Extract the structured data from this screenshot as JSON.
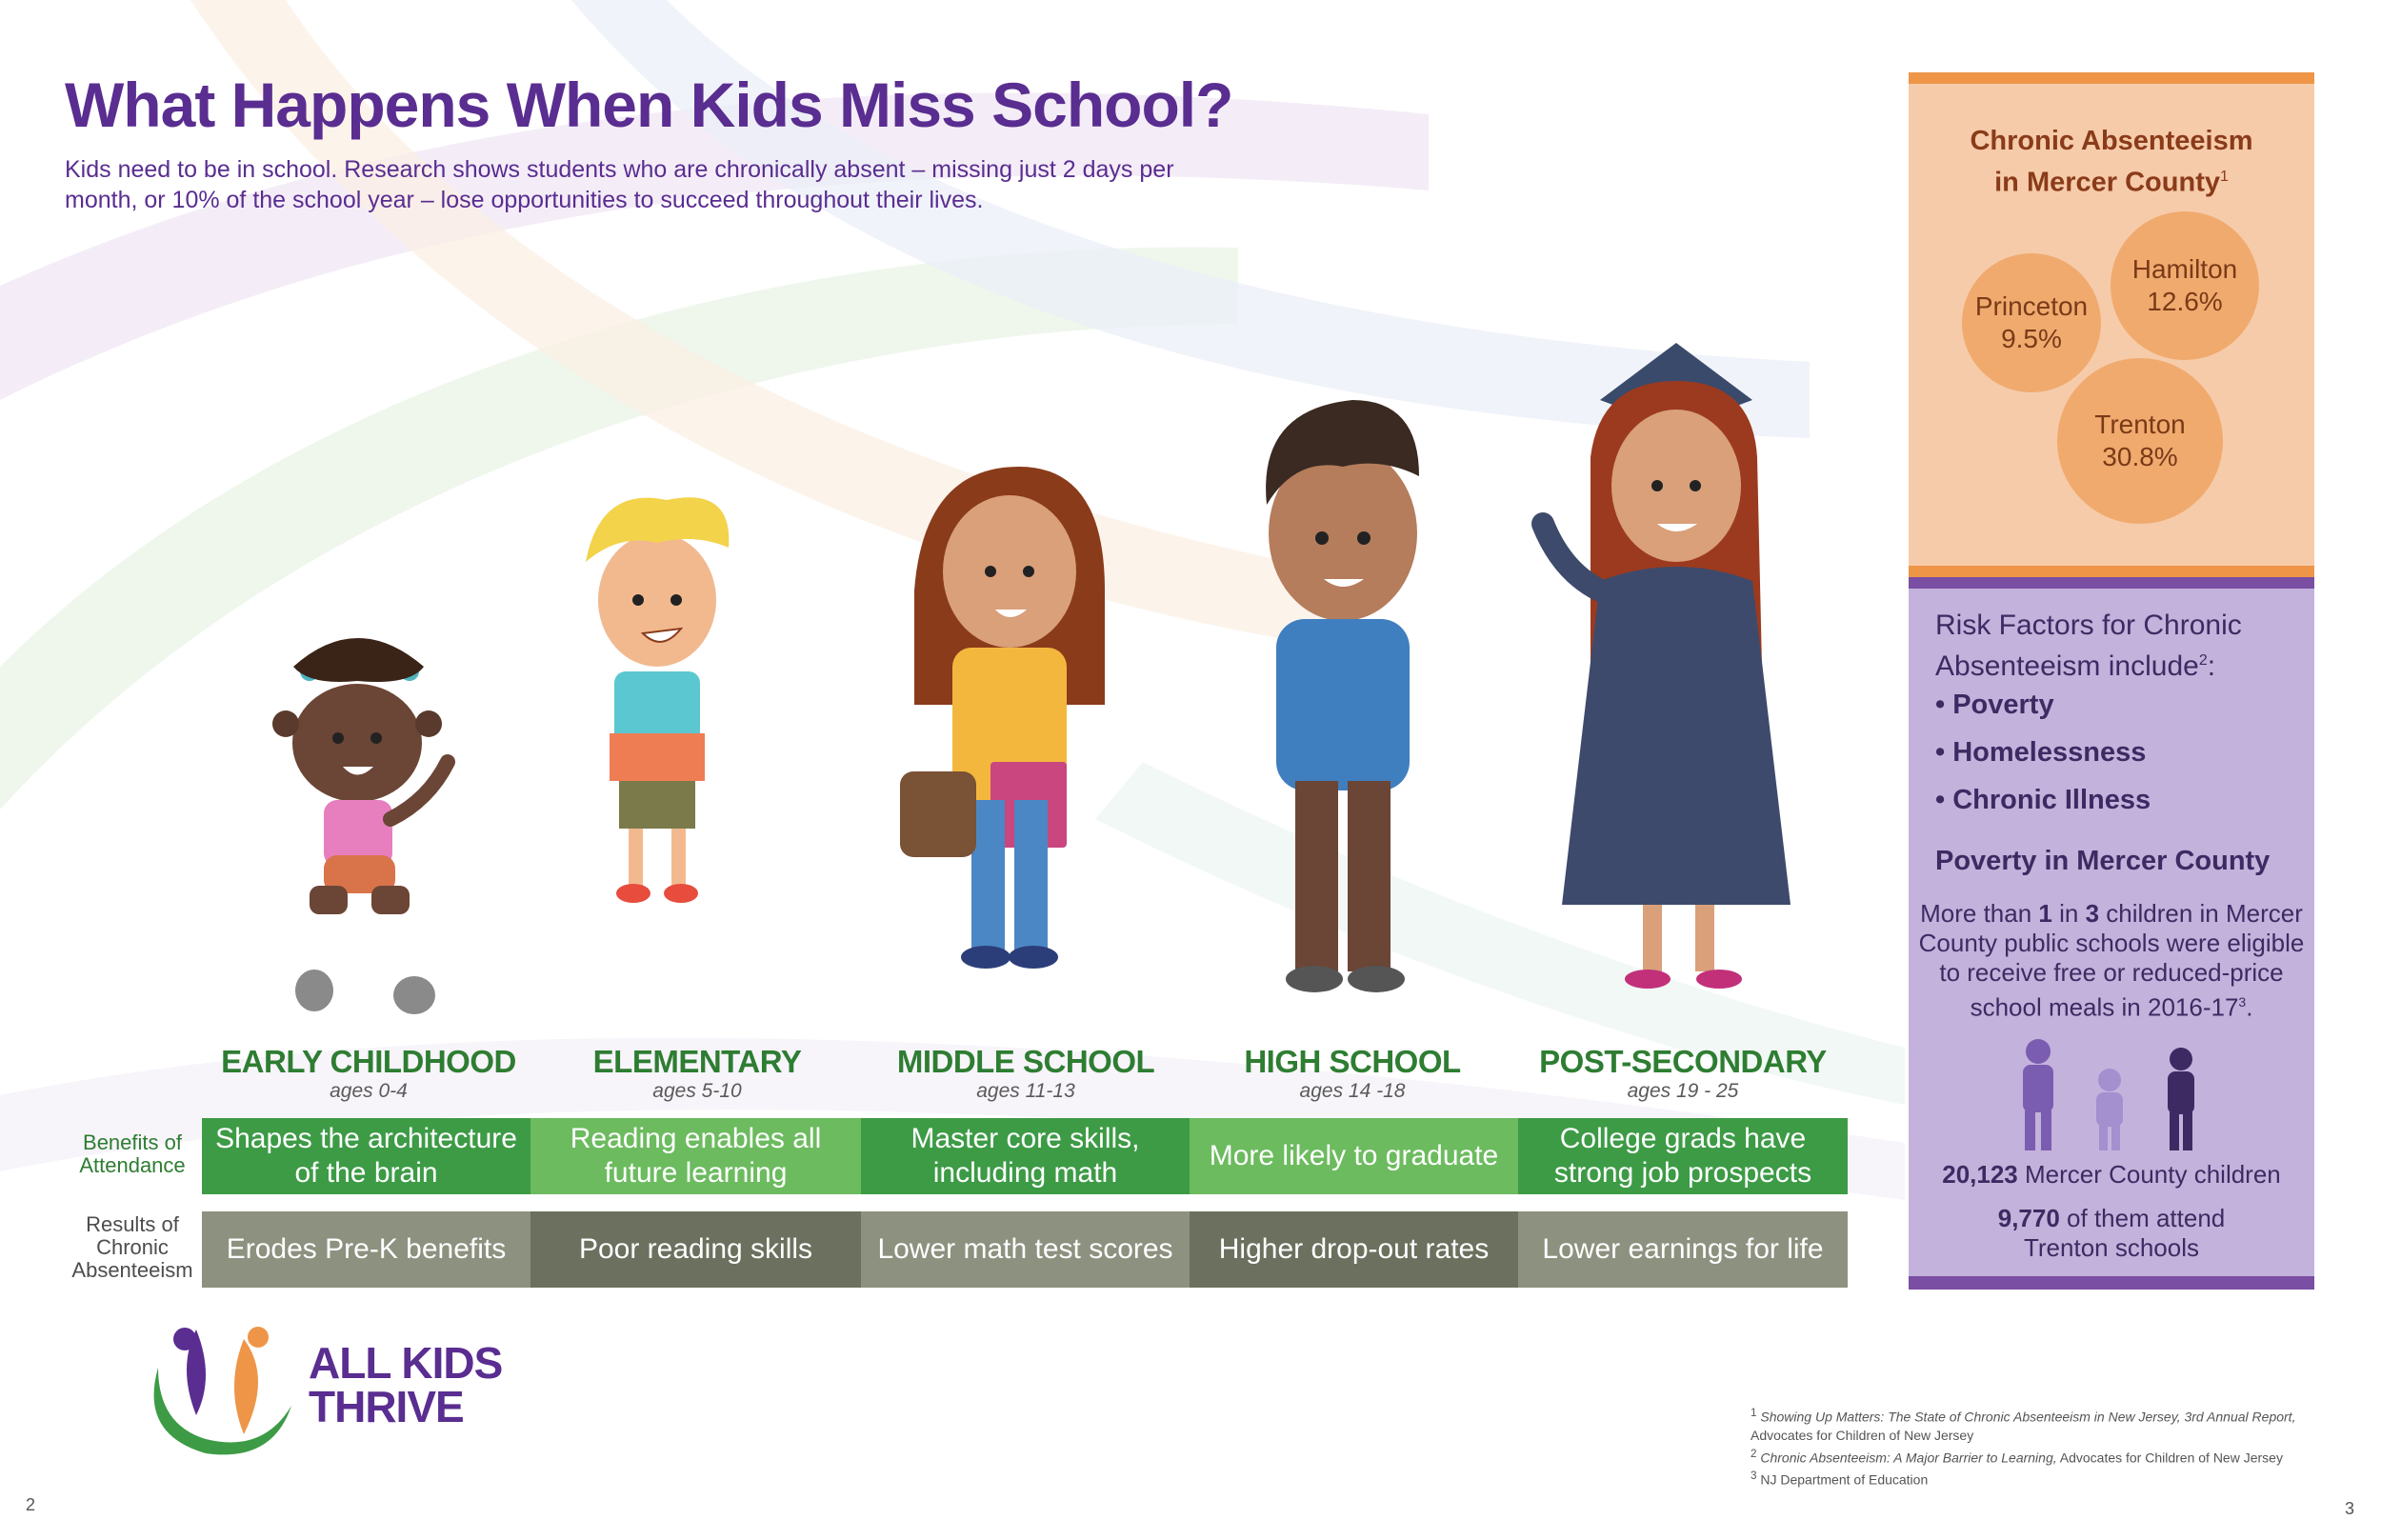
{
  "header": {
    "title": "What Happens When Kids Miss School?",
    "subtitle": "Kids need to be in school. Research shows students who are chronically absent – missing just 2 days per month, or 10% of the school year – lose opportunities to succeed throughout their lives."
  },
  "stages": [
    {
      "title": "EARLY CHILDHOOD",
      "ages": "ages 0-4",
      "benefit": "Shapes the architecture of the brain",
      "result": "Erodes Pre-K benefits"
    },
    {
      "title": "ELEMENTARY",
      "ages": "ages 5-10",
      "benefit": "Reading enables all future learning",
      "result": "Poor reading skills"
    },
    {
      "title": "MIDDLE SCHOOL",
      "ages": "ages 11-13",
      "benefit": "Master core skills, including math",
      "result": "Lower math test scores"
    },
    {
      "title": "HIGH SCHOOL",
      "ages": "ages 14 -18",
      "benefit": "More likely to graduate",
      "result": "Higher drop-out rates"
    },
    {
      "title": "POST-SECONDARY",
      "ages": "ages 19 - 25",
      "benefit": "College grads have strong job prospects",
      "result": "Lower earnings for life"
    }
  ],
  "row_labels": {
    "benefits": "Benefits of Attendance",
    "results": "Results of Chronic Absenteeism"
  },
  "sidebar": {
    "absenteeism_title_line1": "Chronic Absenteeism",
    "absenteeism_title_line2": "in Mercer County",
    "absenteeism_title_sup": "1",
    "towns": [
      {
        "name": "Hamilton",
        "value": "12.6%"
      },
      {
        "name": "Princeton",
        "value": "9.5%"
      },
      {
        "name": "Trenton",
        "value": "30.8%"
      }
    ],
    "risk_title_line1": "Risk Factors for Chronic",
    "risk_title_line2": "Absenteeism include",
    "risk_title_sup": "2",
    "risk_title_end": ":",
    "risk_factors": [
      "• Poverty",
      "• Homelessness",
      "• Chronic Illness"
    ],
    "poverty_title": "Poverty in Mercer County",
    "poverty_pre": "More than ",
    "poverty_num1": "1",
    "poverty_mid": " in ",
    "poverty_num2": "3",
    "poverty_post": " children in Mercer County public schools were eligible to receive free or reduced-price school meals in 2016-17",
    "poverty_sup": "3",
    "poverty_end": ".",
    "children_count": "20,123",
    "children_label": " Mercer County children",
    "trenton_count": "9,770",
    "trenton_label": " of them attend Trenton schools"
  },
  "footnotes": [
    {
      "num": "1",
      "italic": "Showing Up Matters: The State of Chronic Absenteeism in New Jersey, 3rd Annual Report,",
      "rest": " Advocates for Children of New Jersey"
    },
    {
      "num": "2",
      "italic": "Chronic Absenteeism: A Major Barrier to Learning,",
      "rest": " Advocates for Children of New Jersey"
    },
    {
      "num": "3",
      "italic": "",
      "rest": "NJ Department of Education"
    }
  ],
  "logo": {
    "line1": "ALL KIDS",
    "line2": "THRIVE"
  },
  "page_numbers": {
    "left": "2",
    "right": "3"
  },
  "colors": {
    "purple": "#5a2d91",
    "green_dark": "#3d9b46",
    "green_light": "#6cbb5f",
    "grey_light": "#8d917f",
    "grey_dark": "#6b715e",
    "peach": "#f6cba9",
    "orange": "#ee9548",
    "lavender": "#c3b2db"
  }
}
